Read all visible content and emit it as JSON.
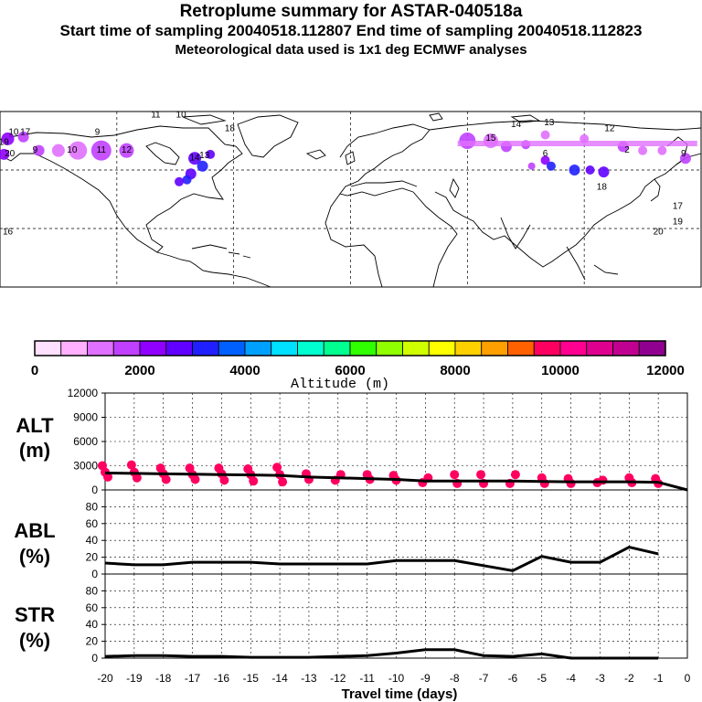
{
  "header": {
    "title": "Retroplume summary for ASTAR-040518a",
    "subtitle": "Start time of sampling 20040518.112807     End time of sampling 20040518.112823",
    "met_note": "Meteorological data used is 1x1 deg ECMWF analyses"
  },
  "colorbar": {
    "label": "Altitude (m)",
    "tick_labels": [
      "0",
      "2000",
      "4000",
      "6000",
      "8000",
      "10000",
      "12000"
    ],
    "colors": [
      "#ffe0ff",
      "#ffb0ff",
      "#e070ff",
      "#c040ff",
      "#9000ff",
      "#6000ff",
      "#2020ff",
      "#0060ff",
      "#00a0ff",
      "#00e0ff",
      "#00ffd0",
      "#00ff90",
      "#30ff00",
      "#90ff00",
      "#d0ff00",
      "#ffff00",
      "#ffd000",
      "#ffa000",
      "#ff6000",
      "#ff0060",
      "#ff0090",
      "#e00090",
      "#c00090",
      "#900090"
    ]
  },
  "map": {
    "trajectory_labels": [
      {
        "text": "10",
        "lon": -173,
        "lat": 78
      },
      {
        "text": "17",
        "lon": -167,
        "lat": 78
      },
      {
        "text": "9",
        "lon": -130,
        "lat": 78
      },
      {
        "text": "11",
        "lon": -100,
        "lat": 87
      },
      {
        "text": "10",
        "lon": -87,
        "lat": 87
      },
      {
        "text": "18",
        "lon": -62,
        "lat": 80
      },
      {
        "text": "19",
        "lon": -178,
        "lat": 73
      },
      {
        "text": "20",
        "lon": -175,
        "lat": 67
      },
      {
        "text": "9",
        "lon": -162,
        "lat": 69
      },
      {
        "text": "10",
        "lon": -143,
        "lat": 69
      },
      {
        "text": "11",
        "lon": -128,
        "lat": 69
      },
      {
        "text": "12",
        "lon": -115,
        "lat": 69
      },
      {
        "text": "14",
        "lon": -80,
        "lat": 65
      },
      {
        "text": "13",
        "lon": -75,
        "lat": 66
      },
      {
        "text": "15",
        "lon": 72,
        "lat": 75
      },
      {
        "text": "14",
        "lon": 85,
        "lat": 82
      },
      {
        "text": "13",
        "lon": 102,
        "lat": 83
      },
      {
        "text": "12",
        "lon": 133,
        "lat": 80
      },
      {
        "text": "6",
        "lon": 100,
        "lat": 67
      },
      {
        "text": "2",
        "lon": 142,
        "lat": 69
      },
      {
        "text": "18",
        "lon": 129,
        "lat": 50
      },
      {
        "text": "17",
        "lon": 168,
        "lat": 40
      },
      {
        "text": "19",
        "lon": 168,
        "lat": 32
      },
      {
        "text": "16",
        "lon": -176,
        "lat": 27
      },
      {
        "text": "20",
        "lon": 158,
        "lat": 27
      },
      {
        "text": "9",
        "lon": 171,
        "lat": 67
      }
    ]
  },
  "chart_data": [
    {
      "type": "scatter",
      "panel_label": "ALT",
      "panel_unit": "(m)",
      "xlabel": "Travel time (days)",
      "x_tick_labels": [
        "-20",
        "-19",
        "-18",
        "-17",
        "-16",
        "-15",
        "-14",
        "-13",
        "-12",
        "-11",
        "-10",
        "-9",
        "-8",
        "-7",
        "-6",
        "-5",
        "-4",
        "-3",
        "-2",
        "-1",
        "0"
      ],
      "y_tick_labels": [
        "12000",
        "9000",
        "6000",
        "3000",
        "0"
      ],
      "xlim": [
        -20,
        0
      ],
      "ylim": [
        0,
        12000
      ],
      "median_line": {
        "x": [
          -20,
          -19,
          -18,
          -17,
          -16,
          -15,
          -14,
          -13,
          -12,
          -11,
          -10,
          -9,
          -8,
          -7,
          -6,
          -5,
          -4,
          -3,
          -2,
          -1,
          0
        ],
        "y": [
          2100,
          2050,
          2000,
          1950,
          1900,
          1850,
          1800,
          1600,
          1500,
          1400,
          1300,
          1100,
          1100,
          1100,
          1100,
          1050,
          1000,
          1000,
          1000,
          950,
          0
        ]
      },
      "points": {
        "x": [
          -20,
          -20,
          -20,
          -19,
          -19,
          -19,
          -18,
          -18,
          -18,
          -17,
          -17,
          -17,
          -16,
          -16,
          -16,
          -15,
          -15,
          -15,
          -14,
          -14,
          -14,
          -13,
          -13,
          -12,
          -12,
          -11,
          -11,
          -10,
          -10,
          -9,
          -9,
          -8,
          -8,
          -7,
          -7,
          -6,
          -6,
          -5,
          -5,
          -4,
          -4,
          -3,
          -3,
          -2,
          -2,
          -1,
          -1
        ],
        "y": [
          3000,
          2200,
          1600,
          3100,
          2200,
          1500,
          2700,
          2000,
          1300,
          2700,
          1900,
          1300,
          2700,
          2000,
          1200,
          2600,
          1900,
          1100,
          2800,
          1900,
          1000,
          2000,
          1300,
          1900,
          1200,
          1900,
          1300,
          1800,
          1200,
          1500,
          900,
          1900,
          800,
          1900,
          800,
          1900,
          800,
          1500,
          800,
          1400,
          800,
          1200,
          900,
          1500,
          900,
          1400,
          800
        ]
      }
    },
    {
      "type": "line",
      "panel_label": "ABL",
      "panel_unit": "(%)",
      "y_tick_labels": [
        "80",
        "60",
        "40",
        "20",
        "0"
      ],
      "xlim": [
        -20,
        0
      ],
      "ylim": [
        0,
        100
      ],
      "x": [
        -20,
        -19,
        -18,
        -17,
        -16,
        -15,
        -14,
        -13,
        -12,
        -11,
        -10,
        -9,
        -8,
        -7,
        -6,
        -5,
        -4,
        -3,
        -2,
        -1
      ],
      "y": [
        13,
        11,
        11,
        14,
        14,
        14,
        12,
        12,
        12,
        12,
        16,
        16,
        16,
        10,
        4,
        21,
        14,
        14,
        32,
        24
      ]
    },
    {
      "type": "line",
      "panel_label": "STR",
      "panel_unit": "(%)",
      "y_tick_labels": [
        "80",
        "60",
        "40",
        "20",
        "0"
      ],
      "xlim": [
        -20,
        0
      ],
      "ylim": [
        0,
        100
      ],
      "x": [
        -20,
        -19,
        -18,
        -17,
        -16,
        -15,
        -14,
        -13,
        -12,
        -11,
        -10,
        -9,
        -8,
        -7,
        -6,
        -5,
        -4,
        -3,
        -2,
        -1
      ],
      "y": [
        2,
        3,
        3,
        2,
        2,
        1,
        1,
        1,
        2,
        3,
        6,
        10,
        10,
        3,
        2,
        5,
        0,
        0,
        0,
        0
      ]
    }
  ]
}
